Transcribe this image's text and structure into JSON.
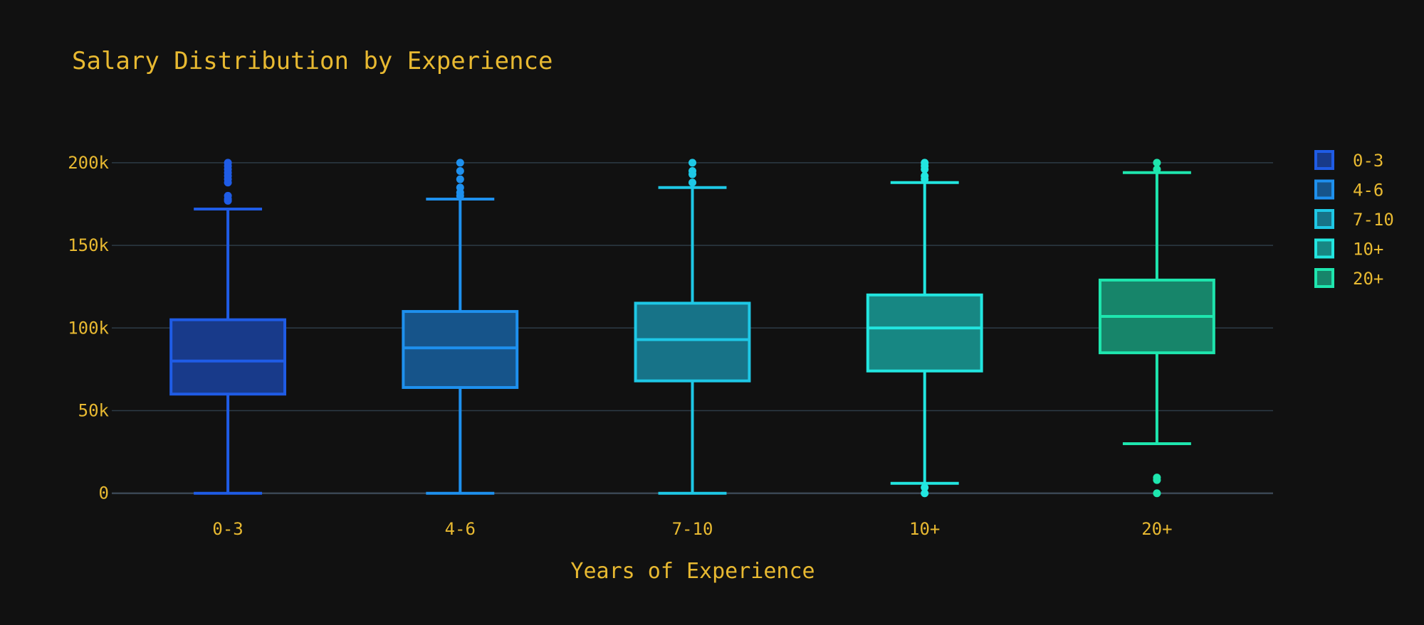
{
  "colors": {
    "background": "#111111",
    "text": "#E8B931",
    "grid": "#2D3B46",
    "zeroline": "#3A4654"
  },
  "chart_data": {
    "type": "box",
    "title": "Salary Distribution by Experience",
    "xlabel": "Years of Experience",
    "ylabel": "",
    "ylim": [
      -7000,
      215000
    ],
    "yticks": [
      0,
      50000,
      100000,
      150000,
      200000
    ],
    "ytick_labels": [
      "0",
      "50k",
      "100k",
      "150k",
      "200k"
    ],
    "grid": true,
    "legend_position": "right",
    "categories": [
      "0-3",
      "4-6",
      "7-10",
      "10+",
      "20+"
    ],
    "series": [
      {
        "name": "0-3",
        "color": "#1F5CE6",
        "fill": "#183A8A",
        "min": 0,
        "q1": 60000,
        "median": 80000,
        "q3": 105000,
        "max": 172000,
        "outliers": [
          177000,
          178000,
          180000,
          188000,
          190000,
          192000,
          194000,
          196000,
          198000,
          200000
        ]
      },
      {
        "name": "4-6",
        "color": "#1E90EE",
        "fill": "#16548A",
        "min": 0,
        "q1": 64000,
        "median": 88000,
        "q3": 110000,
        "max": 178000,
        "outliers": [
          180000,
          182000,
          185000,
          190000,
          195000,
          200000
        ]
      },
      {
        "name": "7-10",
        "color": "#1EC8E6",
        "fill": "#177388",
        "min": 0,
        "q1": 68000,
        "median": 93000,
        "q3": 115000,
        "max": 185000,
        "outliers": [
          188000,
          193000,
          195000,
          200000
        ]
      },
      {
        "name": "10+",
        "color": "#22E6E0",
        "fill": "#178783",
        "min": 6000,
        "q1": 74000,
        "median": 100000,
        "q3": 120000,
        "max": 188000,
        "outliers": [
          0,
          3500,
          190000,
          192000,
          196000,
          198000,
          200000
        ]
      },
      {
        "name": "20+",
        "color": "#1EE6AE",
        "fill": "#17856A",
        "min": 30000,
        "q1": 85000,
        "median": 107000,
        "q3": 129000,
        "max": 194000,
        "outliers": [
          0,
          8000,
          9500,
          196000,
          200000
        ]
      }
    ]
  }
}
